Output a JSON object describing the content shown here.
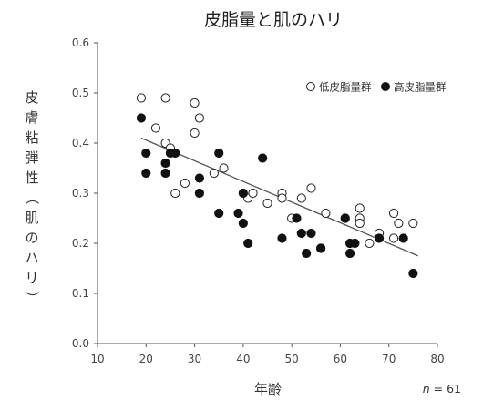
{
  "chart_data": {
    "type": "scatter",
    "title": "皮脂量と肌のハリ",
    "xlabel": "年齢",
    "ylabel": "皮膚粘弾性（肌のハリ）",
    "xlim": [
      10,
      80
    ],
    "ylim": [
      0.0,
      0.6
    ],
    "x_ticks": [
      "10",
      "20",
      "30",
      "40",
      "50",
      "60",
      "70",
      "80"
    ],
    "y_ticks": [
      "0.0",
      "0.1",
      "0.2",
      "0.3",
      "0.4",
      "0.5",
      "0.6"
    ],
    "n_label_italic": "n",
    "n_label_rest": " = 61",
    "legend_position": "top-right",
    "grid": false,
    "colors": {
      "axis": "#555555",
      "trend": "#555555",
      "marker_edge": "#222222",
      "filled": "#111111",
      "open": "#ffffff"
    },
    "series": [
      {
        "name": "低皮脂量群",
        "marker": "open-circle",
        "points": [
          [
            19,
            0.49
          ],
          [
            22,
            0.43
          ],
          [
            24,
            0.49
          ],
          [
            24,
            0.4
          ],
          [
            25,
            0.39
          ],
          [
            26,
            0.3
          ],
          [
            28,
            0.32
          ],
          [
            30,
            0.48
          ],
          [
            30,
            0.42
          ],
          [
            31,
            0.45
          ],
          [
            34,
            0.34
          ],
          [
            36,
            0.35
          ],
          [
            41,
            0.29
          ],
          [
            42,
            0.3
          ],
          [
            45,
            0.28
          ],
          [
            48,
            0.3
          ],
          [
            48,
            0.29
          ],
          [
            50,
            0.25
          ],
          [
            52,
            0.29
          ],
          [
            54,
            0.31
          ],
          [
            56,
            0.19
          ],
          [
            57,
            0.26
          ],
          [
            61,
            0.25
          ],
          [
            64,
            0.27
          ],
          [
            64,
            0.25
          ],
          [
            64,
            0.24
          ],
          [
            66,
            0.2
          ],
          [
            68,
            0.22
          ],
          [
            71,
            0.26
          ],
          [
            71,
            0.21
          ],
          [
            72,
            0.24
          ],
          [
            75,
            0.24
          ]
        ]
      },
      {
        "name": "高皮脂量群",
        "marker": "filled-circle",
        "points": [
          [
            19,
            0.45
          ],
          [
            20,
            0.38
          ],
          [
            20,
            0.34
          ],
          [
            24,
            0.36
          ],
          [
            24,
            0.34
          ],
          [
            25,
            0.38
          ],
          [
            26,
            0.38
          ],
          [
            31,
            0.3
          ],
          [
            31,
            0.33
          ],
          [
            35,
            0.38
          ],
          [
            35,
            0.26
          ],
          [
            39,
            0.26
          ],
          [
            40,
            0.3
          ],
          [
            40,
            0.24
          ],
          [
            41,
            0.2
          ],
          [
            44,
            0.37
          ],
          [
            48,
            0.21
          ],
          [
            51,
            0.25
          ],
          [
            52,
            0.22
          ],
          [
            53,
            0.18
          ],
          [
            54,
            0.22
          ],
          [
            56,
            0.19
          ],
          [
            61,
            0.25
          ],
          [
            62,
            0.18
          ],
          [
            62,
            0.2
          ],
          [
            63,
            0.2
          ],
          [
            68,
            0.21
          ],
          [
            73,
            0.21
          ],
          [
            75,
            0.14
          ]
        ]
      }
    ],
    "trendline": {
      "x": [
        19,
        76
      ],
      "y": [
        0.41,
        0.175
      ]
    }
  }
}
